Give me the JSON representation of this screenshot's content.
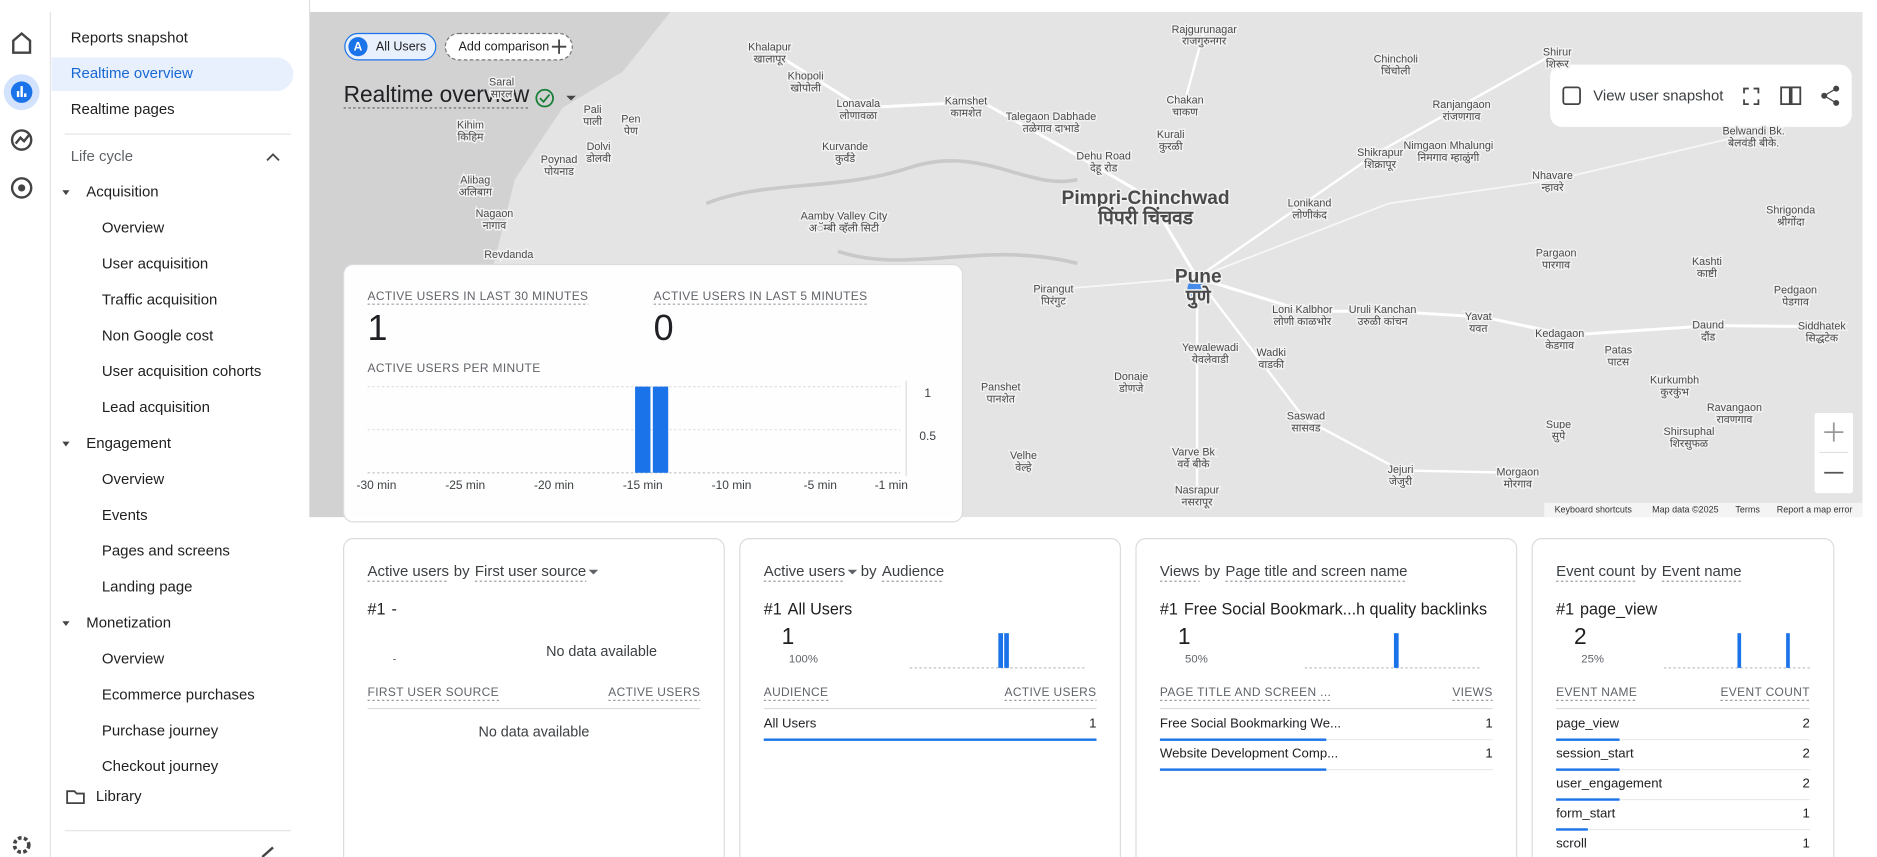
{
  "sidebar": {
    "top_items": [
      "Reports snapshot",
      "Realtime overview",
      "Realtime pages"
    ],
    "section": "Life cycle",
    "groups": [
      {
        "label": "Acquisition",
        "items": [
          "Overview",
          "User acquisition",
          "Traffic acquisition",
          "Non Google cost",
          "User acquisition cohorts",
          "Lead acquisition"
        ]
      },
      {
        "label": "Engagement",
        "items": [
          "Overview",
          "Events",
          "Pages and screens",
          "Landing page"
        ]
      },
      {
        "label": "Monetization",
        "items": [
          "Overview",
          "Ecommerce purchases",
          "Purchase journey",
          "Checkout journey"
        ]
      }
    ],
    "library": "Library"
  },
  "header": {
    "comparison_badge": "A",
    "comparison": "All Users",
    "add_comparison": "Add comparison",
    "title": "Realtime overview"
  },
  "toolbar": {
    "view_user_snapshot": "View user snapshot"
  },
  "map": {
    "labels": [
      {
        "name": "Khalapur",
        "local": "खालापूर"
      },
      {
        "name": "Khopoli",
        "local": "खोपोली"
      },
      {
        "name": "Saral",
        "local": "सारल"
      },
      {
        "name": "Pali",
        "local": "पाली"
      },
      {
        "name": "Lonavala",
        "local": "लोणावळा"
      },
      {
        "name": "Kamshet",
        "local": "कामशेत"
      },
      {
        "name": "Rajgurunagar",
        "local": "राजगुरुनगर"
      },
      {
        "name": "Chincholi",
        "local": "चिंचोली"
      },
      {
        "name": "Shirur",
        "local": "शिरूर"
      },
      {
        "name": "Chakan",
        "local": "चाकण"
      },
      {
        "name": "Talegaon Dabhade",
        "local": "तळेगाव दाभाडे"
      },
      {
        "name": "Ranjangaon",
        "local": "रांजणगाव"
      },
      {
        "name": "Pen",
        "local": "पेण"
      },
      {
        "name": "Kihim",
        "local": "किहिम"
      },
      {
        "name": "Kurali",
        "local": "कुरळी"
      },
      {
        "name": "Belwandi Bk.",
        "local": "बेलवंडी बीके."
      },
      {
        "name": "Kurvande",
        "local": "कुर्वंडे"
      },
      {
        "name": "Dolvi",
        "local": "डोलवी"
      },
      {
        "name": "Nimgaon Mhalungi",
        "local": "निमगाव म्हाळुंगी"
      },
      {
        "name": "Shikrapur",
        "local": "शिक्रापूर"
      },
      {
        "name": "Dehu Road",
        "local": "देहू रोड"
      },
      {
        "name": "Poynad",
        "local": "पोयनाड"
      },
      {
        "name": "Nhavare",
        "local": "न्हावरे"
      },
      {
        "name": "Alibag",
        "local": "अलिबाग"
      },
      {
        "name": "Pimpri-Chinchwad",
        "local": "पिंपरी चिंचवड"
      },
      {
        "name": "Lonikand",
        "local": "लोणीकंद"
      },
      {
        "name": "Shrigonda",
        "local": "श्रीगोंदा"
      },
      {
        "name": "Aamby Valley City",
        "local": "अॅम्बी व्हॅली सिटी"
      },
      {
        "name": "Nagaon",
        "local": "नागाव"
      },
      {
        "name": "Revdanda"
      },
      {
        "name": "Pargaon",
        "local": "पारगाव"
      },
      {
        "name": "Kashti",
        "local": "काष्टी"
      },
      {
        "name": "Pune",
        "local": "पुणे"
      },
      {
        "name": "Pirangut",
        "local": "पिरंगुट"
      },
      {
        "name": "Pedgaon",
        "local": "पेडगाव"
      },
      {
        "name": "Loni Kalbhor",
        "local": "लोणी काळभोर"
      },
      {
        "name": "Uruli Kanchan",
        "local": "उरुळी कांचन"
      },
      {
        "name": "Yavat",
        "local": "यवत"
      },
      {
        "name": "Daund",
        "local": "दौंड"
      },
      {
        "name": "Siddhatek",
        "local": "सिद्धटेक"
      },
      {
        "name": "Kedagaon",
        "local": "केडगाव"
      },
      {
        "name": "Yewalewadi",
        "local": "येवलेवाडी"
      },
      {
        "name": "Wadki",
        "local": "वाडकी"
      },
      {
        "name": "Patas",
        "local": "पाटस"
      },
      {
        "name": "Donaje",
        "local": "डोणजे"
      },
      {
        "name": "Kurkumbh",
        "local": "कुरकुंभ"
      },
      {
        "name": "Panshet",
        "local": "पानशेत"
      },
      {
        "name": "Ravangaon",
        "local": "रावणगाव"
      },
      {
        "name": "Saswad",
        "local": "सासवड"
      },
      {
        "name": "Supe",
        "local": "सुपे"
      },
      {
        "name": "Shirsuphal",
        "local": "शिरसुफळ"
      },
      {
        "name": "Varve Bk",
        "local": "वर्वे बीके"
      },
      {
        "name": "Velhe",
        "local": "वेल्हे"
      },
      {
        "name": "Jejuri",
        "local": "जेजुरी"
      },
      {
        "name": "Morgaon",
        "local": "मोरगाव"
      },
      {
        "name": "Nasrapur",
        "local": "नसरापूर"
      }
    ],
    "attribution": [
      "Keyboard shortcuts",
      "Map data ©2025",
      "Terms",
      "Report a map error"
    ]
  },
  "realtime_card": {
    "metrics": [
      {
        "label": "ACTIVE USERS IN LAST 30 MINUTES",
        "value": 1
      },
      {
        "label": "ACTIVE USERS IN LAST 5 MINUTES",
        "value": 0
      }
    ],
    "chart_data": {
      "type": "bar",
      "title": "ACTIVE USERS PER MINUTE",
      "categories": [
        "-30 min",
        null,
        null,
        null,
        null,
        "-25 min",
        null,
        null,
        null,
        null,
        "-20 min",
        null,
        null,
        null,
        null,
        "-15 min",
        null,
        null,
        null,
        null,
        "-10 min",
        null,
        null,
        null,
        null,
        "-5 min",
        null,
        null,
        null,
        "-1 min"
      ],
      "values": [
        0,
        0,
        0,
        0,
        0,
        0,
        0,
        0,
        0,
        0,
        0,
        0,
        0,
        0,
        0,
        1,
        1,
        0,
        0,
        0,
        0,
        0,
        0,
        0,
        0,
        0,
        0,
        0,
        0,
        0
      ],
      "color": "#1a73e8",
      "ylim": [
        0,
        1
      ],
      "yticks": [
        0.5,
        1
      ],
      "grid": true
    }
  },
  "cards": [
    {
      "metric": "Active users",
      "by": "by",
      "dimension": "First user source",
      "rank": "#1",
      "top_name": "-",
      "top_share": "-",
      "chart_empty": "No data available",
      "columns": [
        "FIRST USER SOURCE",
        "ACTIVE USERS"
      ],
      "rows": [],
      "table_empty": "No data available"
    },
    {
      "metric": "Active users",
      "by": "by",
      "dimension": "Audience",
      "rank": "#1",
      "top_name": "All Users",
      "top_value": 1,
      "top_share": "100%",
      "spark": [
        0,
        0,
        0,
        0,
        0,
        0,
        0,
        0,
        0,
        0,
        0,
        0,
        0,
        0,
        0,
        1,
        1,
        0,
        0,
        0,
        0,
        0,
        0,
        0,
        0,
        0,
        0,
        0,
        0,
        0
      ],
      "columns": [
        "AUDIENCE",
        "ACTIVE USERS"
      ],
      "rows": [
        [
          "All Users",
          1
        ]
      ]
    },
    {
      "metric": "Views",
      "by": "by",
      "dimension": "Page title and screen name",
      "rank": "#1",
      "top_name": "Free Social Bookmark...h quality backlinks",
      "top_value": 1,
      "top_share": "50%",
      "spark": [
        0,
        0,
        0,
        0,
        0,
        0,
        0,
        0,
        0,
        0,
        0,
        0,
        0,
        0,
        0,
        2,
        0,
        0,
        0,
        0,
        0,
        0,
        0,
        0,
        0,
        0,
        0,
        0,
        0,
        0
      ],
      "columns": [
        "PAGE TITLE AND SCREEN ...",
        "VIEWS"
      ],
      "rows": [
        [
          "Free Social Bookmarking We...",
          1
        ],
        [
          "Website Development Comp...",
          1
        ]
      ]
    },
    {
      "metric": "Event count",
      "by": "by",
      "dimension": "Event name",
      "rank": "#1",
      "top_name": "page_view",
      "top_value": 2,
      "top_share": "25%",
      "spark": [
        0,
        0,
        0,
        0,
        0,
        0,
        0,
        0,
        0,
        0,
        0,
        0,
        0,
        0,
        0,
        4,
        0,
        0,
        0,
        0,
        0,
        0,
        0,
        0,
        0,
        4,
        0,
        0,
        0,
        0
      ],
      "columns": [
        "EVENT NAME",
        "EVENT COUNT"
      ],
      "rows": [
        [
          "page_view",
          2
        ],
        [
          "session_start",
          2
        ],
        [
          "user_engagement",
          2
        ],
        [
          "form_start",
          1
        ],
        [
          "scroll",
          1
        ]
      ]
    }
  ]
}
